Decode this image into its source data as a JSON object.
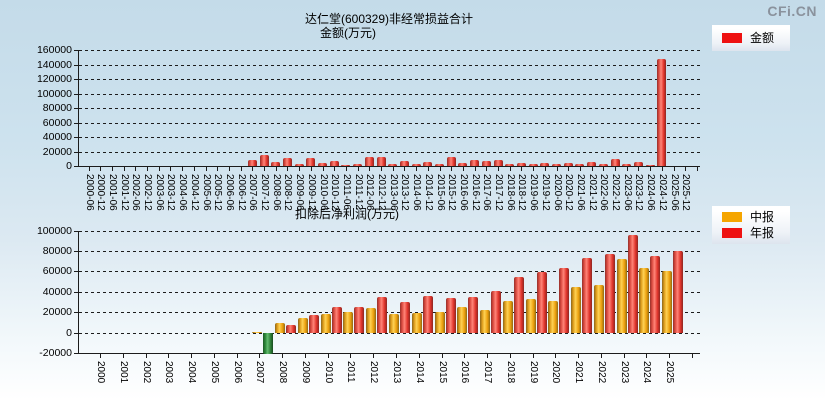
{
  "page": {
    "watermark": "CFi.CN"
  },
  "chart_data": [
    {
      "type": "bar",
      "title": "达仁堂(600329)非经常损益合计",
      "subtitle": "金额(万元)",
      "legend": [
        {
          "label": "金额",
          "color": "#ee1111"
        }
      ],
      "ylim": [
        0,
        160000
      ],
      "ystep": 20000,
      "grid": "dashed-horizontal",
      "legend_position": "top-right",
      "bar_color": "#e03428",
      "categories": [
        "2000-06",
        "2000-12",
        "2001-06",
        "2001-12",
        "2002-06",
        "2002-12",
        "2003-06",
        "2003-12",
        "2004-06",
        "2004-12",
        "2005-06",
        "2005-12",
        "2006-06",
        "2006-12",
        "2007-06",
        "2007-12",
        "2008-06",
        "2008-12",
        "2009-06",
        "2009-12",
        "2010-06",
        "2010-12",
        "2011-06",
        "2011-12",
        "2012-06",
        "2012-12",
        "2013-06",
        "2013-12",
        "2014-06",
        "2014-12",
        "2015-06",
        "2015-12",
        "2016-06",
        "2016-12",
        "2017-06",
        "2017-12",
        "2018-06",
        "2018-12",
        "2019-06",
        "2019-12",
        "2020-06",
        "2020-12",
        "2021-06",
        "2021-12",
        "2022-06",
        "2022-12",
        "2023-06",
        "2023-12",
        "2024-06",
        "2024-12",
        "2025-06",
        "2025-12"
      ],
      "values": [
        null,
        null,
        null,
        null,
        null,
        null,
        null,
        null,
        null,
        null,
        null,
        null,
        null,
        null,
        8000,
        14500,
        5500,
        11500,
        2800,
        10500,
        3700,
        7300,
        1800,
        2800,
        13000,
        12000,
        2800,
        7300,
        3200,
        5100,
        2500,
        12000,
        4100,
        8700,
        6500,
        8700,
        2300,
        3600,
        2600,
        4200,
        2100,
        4600,
        2600,
        5600,
        2100,
        9500,
        2100,
        5200,
        1500,
        147500,
        null,
        null
      ]
    },
    {
      "type": "bar",
      "title": "扣除后净利润(万元)",
      "legend": [
        {
          "label": "中报",
          "color": "#f5a500"
        },
        {
          "label": "年报",
          "color": "#ee1111"
        }
      ],
      "negative_bar_color": "#2e8b3a",
      "ylim": [
        -20000,
        100000
      ],
      "ystep": 20000,
      "grid": "dashed-horizontal",
      "legend_position": "top-right",
      "categories": [
        "2000",
        "2001",
        "2002",
        "2003",
        "2004",
        "2005",
        "2006",
        "2007",
        "2008",
        "2009",
        "2010",
        "2011",
        "2012",
        "2013",
        "2014",
        "2015",
        "2016",
        "2017",
        "2018",
        "2019",
        "2020",
        "2021",
        "2022",
        "2023",
        "2024",
        "2025"
      ],
      "series": [
        {
          "name": "中报",
          "values": [
            null,
            null,
            null,
            null,
            null,
            null,
            null,
            600,
            9000,
            14000,
            18000,
            20000,
            24000,
            18000,
            19000,
            20500,
            25000,
            22000,
            31000,
            33000,
            31000,
            45000,
            47000,
            72500,
            63500,
            60000
          ]
        },
        {
          "name": "年报",
          "values": [
            null,
            null,
            null,
            null,
            null,
            null,
            null,
            -20500,
            7500,
            17000,
            25500,
            25000,
            35000,
            29500,
            36000,
            34000,
            35000,
            40500,
            54500,
            59500,
            63500,
            73500,
            77000,
            95500,
            75000,
            80000
          ]
        }
      ]
    }
  ]
}
